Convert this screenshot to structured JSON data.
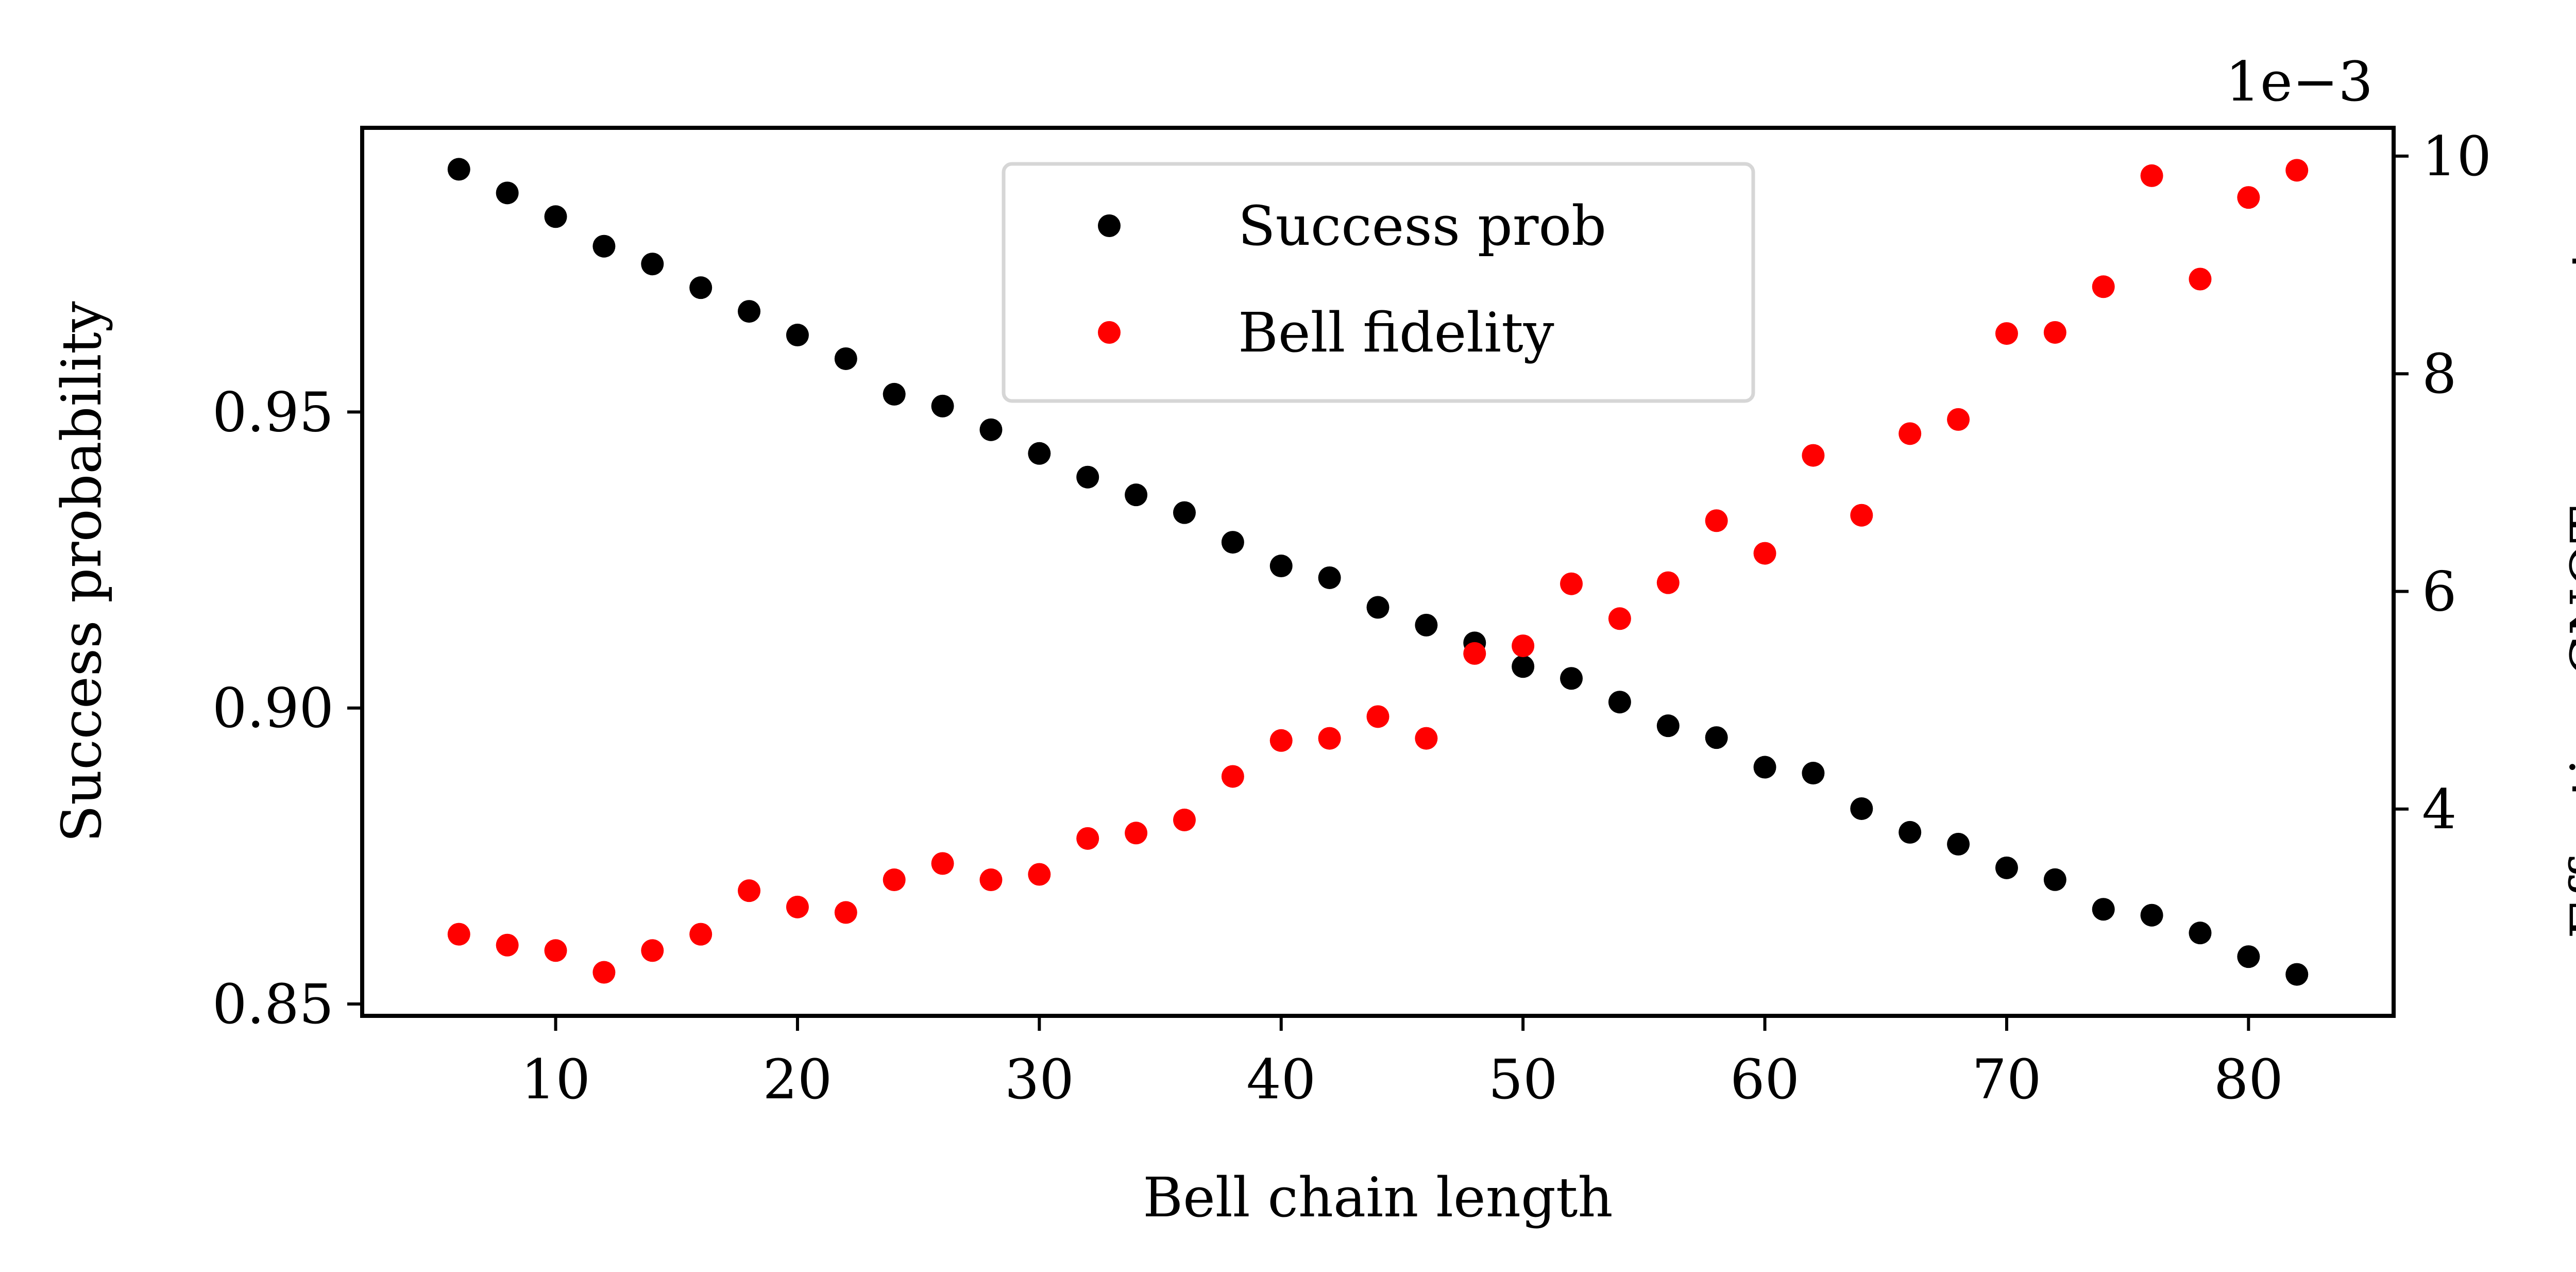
{
  "chart_data": {
    "type": "scatter",
    "title": "",
    "xlabel": "Bell chain length",
    "ylabel": "Success probability",
    "y2label": "Effective CNOT error rate",
    "y2_offset_text": "1e−3",
    "xlim": [
      2,
      86
    ],
    "ylim": [
      0.848,
      0.998
    ],
    "y2lim": [
      0.0021,
      0.01026
    ],
    "x_ticks": [
      10,
      20,
      30,
      40,
      50,
      60,
      70,
      80
    ],
    "x_tick_labels": [
      "10",
      "20",
      "30",
      "40",
      "50",
      "60",
      "70",
      "80"
    ],
    "y_ticks": [
      0.85,
      0.9,
      0.95
    ],
    "y_tick_labels": [
      "0.85",
      "0.90",
      "0.95"
    ],
    "y2_ticks": [
      0.004,
      0.006,
      0.008,
      0.01
    ],
    "y2_tick_labels": [
      "4",
      "6",
      "8",
      "10"
    ],
    "grid": false,
    "legend_position": "top-center",
    "x": [
      6,
      8,
      10,
      12,
      14,
      16,
      18,
      20,
      22,
      24,
      26,
      28,
      30,
      32,
      34,
      36,
      38,
      40,
      42,
      44,
      46,
      48,
      50,
      52,
      54,
      56,
      58,
      60,
      62,
      64,
      66,
      68,
      70,
      72,
      74,
      76,
      78,
      80,
      82
    ],
    "series": [
      {
        "name": "Success prob",
        "axis": "left",
        "color": "#000000",
        "values": [
          0.991,
          0.987,
          0.983,
          0.978,
          0.975,
          0.971,
          0.967,
          0.963,
          0.959,
          0.953,
          0.951,
          0.947,
          0.943,
          0.939,
          0.936,
          0.933,
          0.928,
          0.924,
          0.922,
          0.917,
          0.914,
          0.911,
          0.907,
          0.905,
          0.901,
          0.897,
          0.895,
          0.89,
          0.889,
          0.883,
          0.879,
          0.877,
          0.873,
          0.871,
          0.866,
          0.865,
          0.862,
          0.858,
          0.855
        ]
      },
      {
        "name": "Bell fidelity",
        "axis": "right",
        "color": "#ff0000",
        "values": [
          0.00285,
          0.00275,
          0.0027,
          0.0025,
          0.0027,
          0.00285,
          0.00325,
          0.0031,
          0.00305,
          0.00335,
          0.0035,
          0.00335,
          0.0034,
          0.00373,
          0.00378,
          0.0039,
          0.0043,
          0.00463,
          0.00465,
          0.00485,
          0.00465,
          0.00543,
          0.0055,
          0.00607,
          0.00575,
          0.00608,
          0.00665,
          0.00635,
          0.00725,
          0.0067,
          0.00745,
          0.00758,
          0.00837,
          0.00838,
          0.0088,
          0.00982,
          0.00887,
          0.00962,
          0.00987
        ]
      }
    ]
  }
}
